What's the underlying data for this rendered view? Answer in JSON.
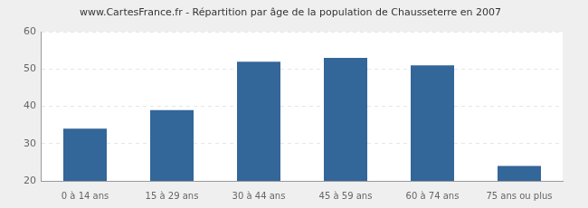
{
  "chart_data": {
    "type": "bar",
    "title": "www.CartesFrance.fr - Répartition par âge de la population de Chausseterre en 2007",
    "categories": [
      "0 à 14 ans",
      "15 à 29 ans",
      "30 à 44 ans",
      "45 à 59 ans",
      "60 à 74 ans",
      "75 ans ou plus"
    ],
    "values": [
      34,
      39,
      52,
      53,
      51,
      24
    ],
    "color": "#336699",
    "ylim": [
      20,
      60
    ],
    "yticks": [
      20,
      30,
      40,
      50,
      60
    ],
    "grid": true
  }
}
